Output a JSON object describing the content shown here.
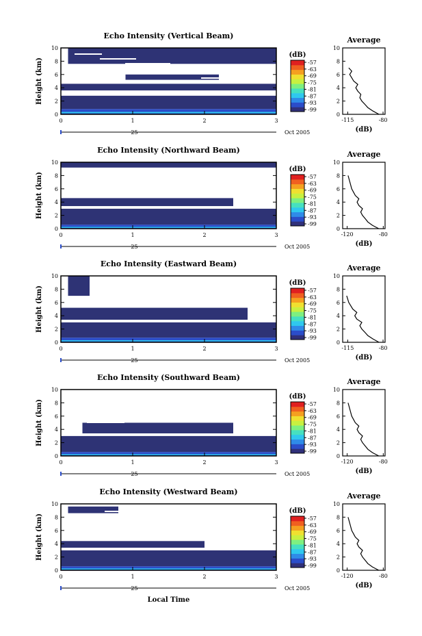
{
  "figure": {
    "xlabel": "Local Time",
    "date_label": "Oct 2005",
    "day_label": "25",
    "colorbar_unit": "(dB)",
    "colorbar_ticks": [
      "-57",
      "-63",
      "-69",
      "-75",
      "-81",
      "-87",
      "-93",
      "-99"
    ],
    "colormap": [
      "#30307a",
      "#2b4dc9",
      "#2f8be8",
      "#2fc8ee",
      "#46e0c0",
      "#7ef080",
      "#c8f040",
      "#f0e030",
      "#f5a020",
      "#f06020",
      "#e02020"
    ],
    "panel_color": "#2e3375",
    "avg_title": "Average",
    "avg_xlabel": "(dB)"
  },
  "chart_data": [
    {
      "type": "heatmap",
      "title": "Echo Intensity (Vertical Beam)",
      "ylabel": "Height (km)",
      "x_ticks": [
        "0",
        "1",
        "2",
        "3"
      ],
      "y_ticks": [
        "0",
        "2",
        "4",
        "6",
        "8",
        "10"
      ],
      "xlim": [
        0,
        3
      ],
      "ylim": [
        0,
        10
      ],
      "bands": [
        {
          "y0": 0.0,
          "y1": 0.8,
          "x0": 0,
          "x1": 3,
          "intensity": "high"
        },
        {
          "y0": 0.8,
          "y1": 2.8,
          "x0": 0,
          "x1": 3,
          "intensity": "low"
        },
        {
          "y0": 3.6,
          "y1": 4.6,
          "x0": 0,
          "x1": 3,
          "intensity": "low"
        },
        {
          "y0": 5.2,
          "y1": 6.0,
          "x0": 0.9,
          "x1": 2.2,
          "intensity": "low"
        },
        {
          "y0": 7.6,
          "y1": 10.0,
          "x0": 0.1,
          "x1": 3,
          "intensity": "low"
        }
      ],
      "average": {
        "x_ticks": [
          "-115",
          "-80"
        ],
        "y_ticks": [
          "0",
          "2",
          "4",
          "6",
          "8",
          "10"
        ],
        "xlim": [
          -120,
          -78
        ],
        "profile": [
          [
            -84,
            0
          ],
          [
            -90,
            0.5
          ],
          [
            -95,
            1
          ],
          [
            -98,
            1.5
          ],
          [
            -101,
            2
          ],
          [
            -103,
            2.5
          ],
          [
            -102,
            3
          ],
          [
            -105,
            3.5
          ],
          [
            -107,
            4
          ],
          [
            -105,
            4.5
          ],
          [
            -109,
            5
          ],
          [
            -111,
            5.5
          ],
          [
            -113,
            6
          ],
          [
            -111,
            6.5
          ],
          [
            -114,
            7
          ]
        ]
      }
    },
    {
      "type": "heatmap",
      "title": "Echo Intensity (Northward Beam)",
      "ylabel": "Height (km)",
      "x_ticks": [
        "0",
        "1",
        "2",
        "3"
      ],
      "y_ticks": [
        "0",
        "2",
        "4",
        "6",
        "8",
        "10"
      ],
      "xlim": [
        0,
        3
      ],
      "ylim": [
        0,
        10
      ],
      "bands": [
        {
          "y0": 0.0,
          "y1": 0.6,
          "x0": 0,
          "x1": 3,
          "intensity": "high"
        },
        {
          "y0": 0.6,
          "y1": 3.0,
          "x0": 0,
          "x1": 3,
          "intensity": "low"
        },
        {
          "y0": 3.4,
          "y1": 4.6,
          "x0": 0,
          "x1": 2.4,
          "intensity": "low"
        },
        {
          "y0": 9.2,
          "y1": 10.0,
          "x0": 0,
          "x1": 3,
          "intensity": "low"
        }
      ],
      "average": {
        "x_ticks": [
          "-120",
          "-80"
        ],
        "y_ticks": [
          "0",
          "2",
          "4",
          "6",
          "8",
          "10"
        ],
        "xlim": [
          -125,
          -78
        ],
        "profile": [
          [
            -85,
            0
          ],
          [
            -92,
            0.5
          ],
          [
            -97,
            1
          ],
          [
            -100,
            1.5
          ],
          [
            -103,
            2
          ],
          [
            -105,
            2.5
          ],
          [
            -103,
            3
          ],
          [
            -107,
            3.5
          ],
          [
            -109,
            4
          ],
          [
            -107,
            4.5
          ],
          [
            -111,
            5
          ],
          [
            -113,
            5.5
          ],
          [
            -115,
            6
          ],
          [
            -117,
            7
          ],
          [
            -119,
            8
          ]
        ]
      }
    },
    {
      "type": "heatmap",
      "title": "Echo Intensity (Eastward Beam)",
      "ylabel": "Height (km)",
      "x_ticks": [
        "0",
        "1",
        "2",
        "3"
      ],
      "y_ticks": [
        "0",
        "2",
        "4",
        "6",
        "8",
        "10"
      ],
      "xlim": [
        0,
        3
      ],
      "ylim": [
        0,
        10
      ],
      "bands": [
        {
          "y0": 0.0,
          "y1": 0.7,
          "x0": 0,
          "x1": 3,
          "intensity": "high"
        },
        {
          "y0": 0.7,
          "y1": 3.0,
          "x0": 0,
          "x1": 3,
          "intensity": "low"
        },
        {
          "y0": 3.4,
          "y1": 5.2,
          "x0": 0,
          "x1": 2.6,
          "intensity": "low"
        },
        {
          "y0": 7.0,
          "y1": 10.0,
          "x0": 0.1,
          "x1": 0.4,
          "intensity": "low"
        }
      ],
      "average": {
        "x_ticks": [
          "-115",
          "-80"
        ],
        "y_ticks": [
          "0",
          "2",
          "4",
          "6",
          "8",
          "10"
        ],
        "xlim": [
          -120,
          -78
        ],
        "profile": [
          [
            -84,
            0
          ],
          [
            -90,
            0.5
          ],
          [
            -95,
            1
          ],
          [
            -98,
            1.5
          ],
          [
            -101,
            2
          ],
          [
            -103,
            2.5
          ],
          [
            -101,
            3
          ],
          [
            -106,
            3.5
          ],
          [
            -108,
            4
          ],
          [
            -106,
            4.5
          ],
          [
            -110,
            5
          ],
          [
            -112,
            5.5
          ],
          [
            -114,
            6
          ],
          [
            -116,
            7
          ]
        ]
      }
    },
    {
      "type": "heatmap",
      "title": "Echo Intensity (Southward Beam)",
      "ylabel": "Height (km)",
      "x_ticks": [
        "0",
        "1",
        "2",
        "3"
      ],
      "y_ticks": [
        "0",
        "2",
        "4",
        "6",
        "8",
        "10"
      ],
      "xlim": [
        0,
        3
      ],
      "ylim": [
        0,
        10
      ],
      "bands": [
        {
          "y0": 0.0,
          "y1": 0.6,
          "x0": 0,
          "x1": 3,
          "intensity": "high"
        },
        {
          "y0": 0.6,
          "y1": 3.0,
          "x0": 0,
          "x1": 3,
          "intensity": "low"
        },
        {
          "y0": 3.4,
          "y1": 5.0,
          "x0": 0.3,
          "x1": 2.4,
          "intensity": "low"
        }
      ],
      "average": {
        "x_ticks": [
          "-120",
          "-80"
        ],
        "y_ticks": [
          "0",
          "2",
          "4",
          "6",
          "8",
          "10"
        ],
        "xlim": [
          -125,
          -78
        ],
        "profile": [
          [
            -85,
            0
          ],
          [
            -92,
            0.5
          ],
          [
            -97,
            1
          ],
          [
            -100,
            1.5
          ],
          [
            -103,
            2
          ],
          [
            -105,
            2.5
          ],
          [
            -103,
            3
          ],
          [
            -107,
            3.5
          ],
          [
            -109,
            4
          ],
          [
            -107,
            4.5
          ],
          [
            -111,
            5
          ],
          [
            -113,
            5.5
          ],
          [
            -115,
            6
          ],
          [
            -117,
            7
          ],
          [
            -119,
            8
          ]
        ]
      }
    },
    {
      "type": "heatmap",
      "title": "Echo Intensity (Westward Beam)",
      "ylabel": "Height (km)",
      "x_ticks": [
        "0",
        "1",
        "2",
        "3"
      ],
      "y_ticks": [
        "0",
        "2",
        "4",
        "6",
        "8",
        "10"
      ],
      "xlim": [
        0,
        3
      ],
      "ylim": [
        0,
        10
      ],
      "bands": [
        {
          "y0": 0.0,
          "y1": 0.6,
          "x0": 0,
          "x1": 3,
          "intensity": "high"
        },
        {
          "y0": 0.6,
          "y1": 3.0,
          "x0": 0,
          "x1": 3,
          "intensity": "low"
        },
        {
          "y0": 3.4,
          "y1": 4.4,
          "x0": 0,
          "x1": 2.0,
          "intensity": "low"
        },
        {
          "y0": 8.6,
          "y1": 9.6,
          "x0": 0.1,
          "x1": 0.8,
          "intensity": "low"
        }
      ],
      "average": {
        "x_ticks": [
          "-120",
          "-80"
        ],
        "y_ticks": [
          "0",
          "2",
          "4",
          "6",
          "8",
          "10"
        ],
        "xlim": [
          -125,
          -78
        ],
        "profile": [
          [
            -85,
            0
          ],
          [
            -92,
            0.5
          ],
          [
            -97,
            1
          ],
          [
            -100,
            1.5
          ],
          [
            -103,
            2
          ],
          [
            -105,
            2.5
          ],
          [
            -103,
            3
          ],
          [
            -107,
            3.5
          ],
          [
            -109,
            4
          ],
          [
            -107,
            4.5
          ],
          [
            -111,
            5
          ],
          [
            -113,
            5.5
          ],
          [
            -115,
            6
          ],
          [
            -117,
            7
          ],
          [
            -119,
            8
          ]
        ]
      }
    }
  ]
}
